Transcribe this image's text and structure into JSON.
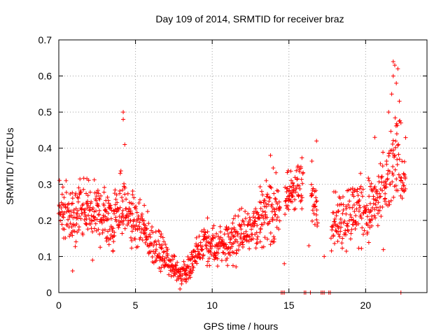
{
  "chart_data": {
    "type": "scatter",
    "title": "Day 109 of 2014, SRMTID for receiver braz",
    "xlabel": "GPS time / hours",
    "ylabel": "SRMTID / TECUs",
    "xlim": [
      0,
      24
    ],
    "ylim": [
      0,
      0.7
    ],
    "x_ticks": [
      0,
      5,
      10,
      15,
      20
    ],
    "x_tick_labels": [
      "0",
      "5",
      "10",
      "15",
      "20"
    ],
    "y_ticks": [
      0,
      0.1,
      0.2,
      0.3,
      0.4,
      0.5,
      0.6,
      0.7
    ],
    "y_tick_labels": [
      "0",
      "0.1",
      "0.2",
      "0.3",
      "0.4",
      "0.5",
      "0.6",
      "0.7"
    ],
    "grid": true,
    "marker": "+",
    "series": [
      {
        "name": "SRMTID",
        "color": "#ff0000",
        "trend_x": [
          0,
          0.5,
          1,
          1.5,
          2,
          2.5,
          3,
          3.5,
          4,
          4.5,
          5,
          5.5,
          6,
          6.5,
          7,
          7.5,
          8,
          8.5,
          9,
          9.5,
          10,
          10.5,
          11,
          11.5,
          12,
          12.5,
          13,
          13.5,
          14,
          14.5,
          15,
          15.5,
          16,
          16.5,
          17.5,
          18,
          18.5,
          19,
          19.5,
          20,
          20.5,
          21,
          21.5,
          22,
          22.5
        ],
        "trend_y": [
          0.23,
          0.22,
          0.2,
          0.22,
          0.23,
          0.22,
          0.21,
          0.2,
          0.25,
          0.22,
          0.19,
          0.17,
          0.14,
          0.12,
          0.09,
          0.07,
          0.05,
          0.07,
          0.1,
          0.14,
          0.12,
          0.13,
          0.14,
          0.15,
          0.17,
          0.19,
          0.2,
          0.22,
          0.24,
          0.22,
          0.27,
          0.3,
          0.28,
          0.27,
          0.19,
          0.21,
          0.2,
          0.22,
          0.23,
          0.22,
          0.24,
          0.25,
          0.3,
          0.38,
          0.33
        ],
        "spread": [
          0.06,
          0.07,
          0.08,
          0.09,
          0.08,
          0.08,
          0.08,
          0.08,
          0.09,
          0.08,
          0.07,
          0.06,
          0.06,
          0.05,
          0.04,
          0.03,
          0.03,
          0.04,
          0.05,
          0.06,
          0.06,
          0.06,
          0.06,
          0.06,
          0.06,
          0.07,
          0.07,
          0.08,
          0.09,
          0.08,
          0.07,
          0.07,
          0.08,
          0.08,
          0.06,
          0.08,
          0.09,
          0.09,
          0.09,
          0.09,
          0.09,
          0.1,
          0.12,
          0.13,
          0.08
        ],
        "outliers": [
          {
            "x": 4.2,
            "y": 0.5
          },
          {
            "x": 4.2,
            "y": 0.48
          },
          {
            "x": 4.3,
            "y": 0.41
          },
          {
            "x": 21.8,
            "y": 0.64
          },
          {
            "x": 21.9,
            "y": 0.63
          },
          {
            "x": 22.1,
            "y": 0.62
          },
          {
            "x": 21.8,
            "y": 0.6
          },
          {
            "x": 22.0,
            "y": 0.58
          },
          {
            "x": 21.7,
            "y": 0.55
          },
          {
            "x": 22.2,
            "y": 0.53
          },
          {
            "x": 21.5,
            "y": 0.5
          },
          {
            "x": 22.3,
            "y": 0.47
          },
          {
            "x": 0.9,
            "y": 0.06
          },
          {
            "x": 2.2,
            "y": 0.09
          },
          {
            "x": 7.9,
            "y": 0.01
          },
          {
            "x": 14.7,
            "y": 0.08
          },
          {
            "x": 16.3,
            "y": 0.13
          },
          {
            "x": 17.3,
            "y": 0.1
          },
          {
            "x": 16.8,
            "y": 0.42
          },
          {
            "x": 20.6,
            "y": 0.43
          },
          {
            "x": 13.8,
            "y": 0.38
          }
        ],
        "zero_x": [
          14.5,
          14.6,
          14.7,
          16.0,
          16.1,
          16.4,
          17.1,
          17.2,
          17.3,
          17.6,
          17.7,
          22.3
        ]
      }
    ]
  }
}
